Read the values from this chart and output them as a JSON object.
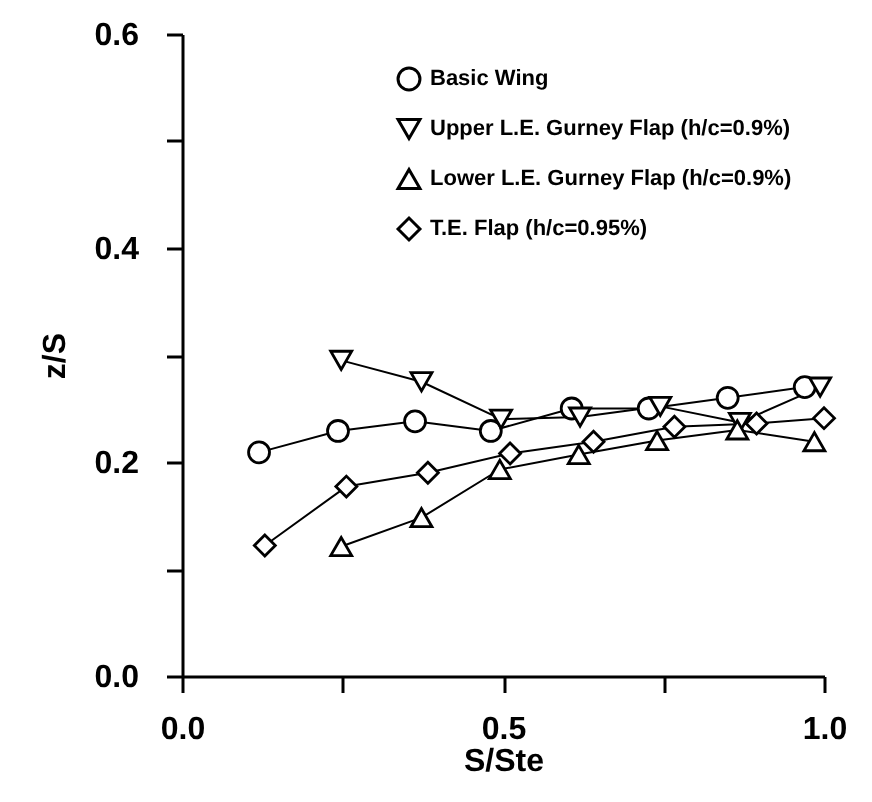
{
  "chart_data": {
    "type": "line",
    "xlabel": "S/Ste",
    "ylabel": "z/S",
    "xlim": [
      0,
      1
    ],
    "ylim": [
      0,
      0.6
    ],
    "xticks": [
      {
        "value": 0,
        "label": "0.0"
      },
      {
        "value": 0.25,
        "label": null
      },
      {
        "value": 0.5,
        "label": "0.5"
      },
      {
        "value": 0.75,
        "label": null
      },
      {
        "value": 1,
        "label": "1.0"
      }
    ],
    "yticks": [
      {
        "value": 0,
        "label": "0.0"
      },
      {
        "value": 0.1,
        "label": null
      },
      {
        "value": 0.2,
        "label": "0.2"
      },
      {
        "value": 0.3,
        "label": null
      },
      {
        "value": 0.4,
        "label": "0.4"
      },
      {
        "value": 0.5,
        "label": null
      },
      {
        "value": 0.6,
        "label": "0.6"
      }
    ],
    "grid": false,
    "legend": "top right",
    "line_style": "solid",
    "series": [
      {
        "name": "Basic Wing",
        "color": "#000000",
        "marker": "circle",
        "x": [
          0.12,
          0.243,
          0.363,
          0.481,
          0.607,
          0.727,
          0.85,
          0.97
        ],
        "values": [
          0.209,
          0.229,
          0.238,
          0.229,
          0.25,
          0.25,
          0.26,
          0.27
        ]
      },
      {
        "name": "Upper L.E. Gurney Flap (h/c=0.9%)",
        "color": "#000000",
        "marker": "triangle-down",
        "x": [
          0.248,
          0.373,
          0.497,
          0.62,
          0.745,
          0.869,
          0.994
        ],
        "values": [
          0.295,
          0.275,
          0.24,
          0.242,
          0.252,
          0.237,
          0.27
        ]
      },
      {
        "name": "Lower L.E. Gurney Flap (h/c=0.9%)",
        "color": "#000000",
        "marker": "triangle-up",
        "x": [
          0.248,
          0.373,
          0.495,
          0.618,
          0.74,
          0.865,
          0.985
        ],
        "values": [
          0.121,
          0.148,
          0.193,
          0.207,
          0.22,
          0.23,
          0.219
        ]
      },
      {
        "name": "T.E. Flap (h/c=0.95%)",
        "color": "#000000",
        "marker": "diamond",
        "x": [
          0.129,
          0.256,
          0.383,
          0.511,
          0.641,
          0.767,
          0.895,
          1.0
        ],
        "values": [
          0.122,
          0.177,
          0.19,
          0.208,
          0.219,
          0.233,
          0.236,
          0.241
        ]
      }
    ]
  }
}
